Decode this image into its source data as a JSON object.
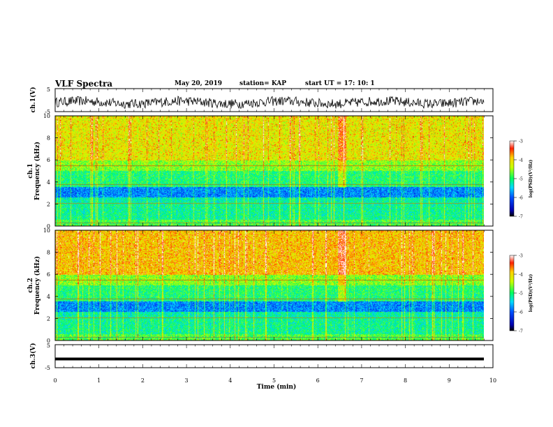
{
  "header": {
    "title": "VLF Spectra",
    "date": "May 20, 2019",
    "station": "station= KAP",
    "start_ut": "start  UT  =    17: 10: 1"
  },
  "chart_data": [
    {
      "type": "line",
      "ylabel": "ch.1(V)",
      "ylim": [
        -5,
        5
      ],
      "yticks": [
        "5",
        "-5"
      ],
      "xlim": [
        0,
        10
      ],
      "note_series": "noisy waveform around -1 V"
    },
    {
      "type": "heatmap",
      "ylabel": "ch.1\nFrequency (kHz)",
      "ylabel_lines": [
        "ch.1",
        "Frequency (kHz)"
      ],
      "ylim": [
        0,
        10
      ],
      "yticks": [
        "0",
        "2",
        "4",
        "6",
        "8",
        "10"
      ],
      "xlim": [
        0,
        10
      ],
      "colorbar": {
        "label": "log(PSD)(V²/Hz)",
        "range": [
          -7,
          -3
        ],
        "ticks": [
          "-3",
          "-4",
          "-5",
          "-6",
          "-7"
        ]
      }
    },
    {
      "type": "heatmap",
      "ylabel_lines": [
        "ch.2",
        "Frequency (kHz)"
      ],
      "ylim": [
        0,
        10
      ],
      "yticks": [
        "0",
        "2",
        "4",
        "6",
        "8",
        "10"
      ],
      "xlim": [
        0,
        10
      ],
      "colorbar": {
        "label": "log(PSD)(V²/Hz)",
        "range": [
          -7,
          -3
        ],
        "ticks": [
          "-3",
          "-4",
          "-5",
          "-6",
          "-7"
        ]
      }
    },
    {
      "type": "line",
      "ylabel": "ch.3(V)",
      "ylim": [
        -5,
        5
      ],
      "yticks": [
        "5",
        "-5"
      ],
      "xlim": [
        0,
        10
      ],
      "xlabel": "Time (min)",
      "xticks": [
        "0",
        "1",
        "2",
        "3",
        "4",
        "5",
        "6",
        "7",
        "8",
        "9",
        "10"
      ],
      "series": [
        {
          "values_constant": -1.2
        }
      ]
    }
  ]
}
